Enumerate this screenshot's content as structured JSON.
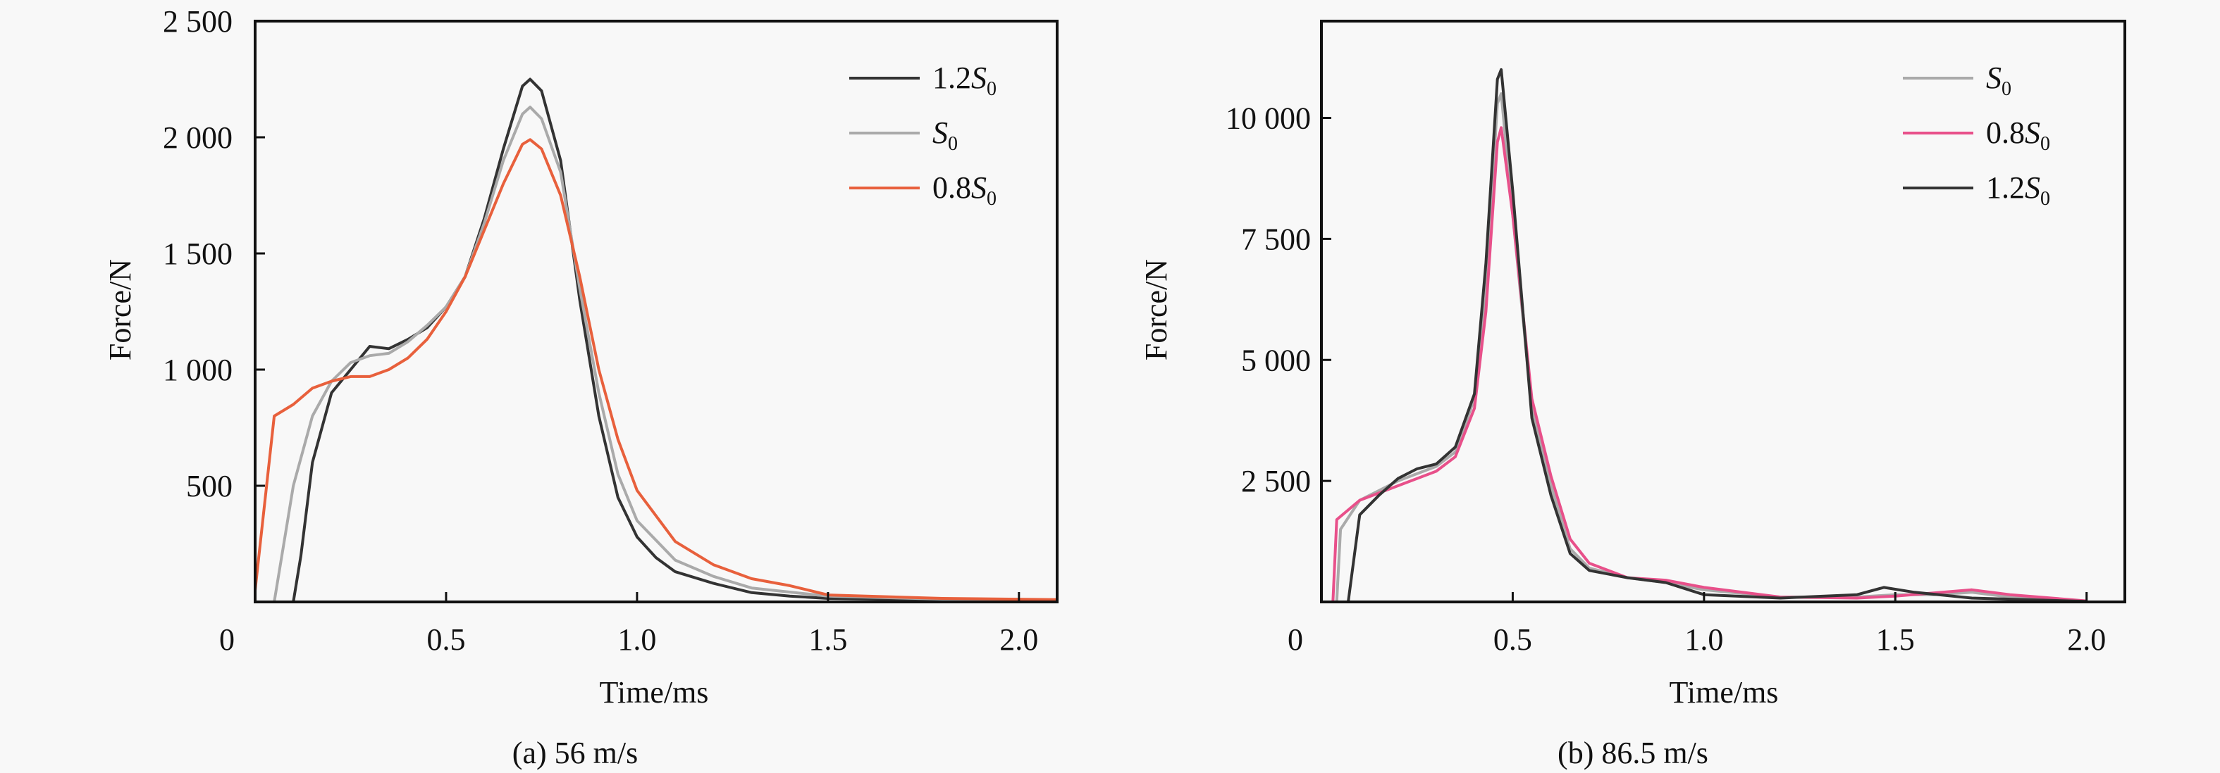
{
  "chart_data": [
    {
      "type": "line",
      "caption": "(a) 56 m/s",
      "xlabel": "Time/ms",
      "ylabel": "Force/N",
      "xlim": [
        0,
        2.1
      ],
      "ylim": [
        0,
        2500
      ],
      "xticks": [
        "0",
        "0.5",
        "1.0",
        "1.5",
        "2.0"
      ],
      "xtick_values": [
        0,
        0.5,
        1.0,
        1.5,
        2.0
      ],
      "yticks": [
        "500",
        "1 000",
        "1 500",
        "2 000",
        "2 500"
      ],
      "ytick_values": [
        500,
        1000,
        1500,
        2000,
        2500
      ],
      "grid": false,
      "legend_position": "top-right",
      "series": [
        {
          "name": "1.2S0",
          "label": {
            "prefix": "1.2",
            "var": "S",
            "sub": "0"
          },
          "color": "#333333",
          "x": [
            0.1,
            0.12,
            0.15,
            0.2,
            0.25,
            0.3,
            0.35,
            0.4,
            0.45,
            0.5,
            0.55,
            0.6,
            0.65,
            0.7,
            0.72,
            0.75,
            0.8,
            0.85,
            0.9,
            0.95,
            1.0,
            1.05,
            1.1,
            1.2,
            1.3,
            1.4,
            1.5,
            1.8,
            2.1
          ],
          "y": [
            0,
            200,
            600,
            900,
            1000,
            1100,
            1090,
            1130,
            1180,
            1270,
            1400,
            1650,
            1950,
            2220,
            2250,
            2200,
            1900,
            1300,
            800,
            450,
            280,
            190,
            130,
            80,
            40,
            25,
            15,
            8,
            3
          ]
        },
        {
          "name": "S0",
          "label": {
            "prefix": "",
            "var": "S",
            "sub": "0"
          },
          "color": "#aaaaaa",
          "x": [
            0.05,
            0.08,
            0.1,
            0.15,
            0.2,
            0.25,
            0.3,
            0.35,
            0.4,
            0.45,
            0.5,
            0.55,
            0.6,
            0.65,
            0.7,
            0.72,
            0.75,
            0.8,
            0.85,
            0.9,
            0.95,
            1.0,
            1.1,
            1.2,
            1.3,
            1.5,
            1.8,
            2.1
          ],
          "y": [
            0,
            300,
            500,
            800,
            950,
            1030,
            1060,
            1070,
            1120,
            1190,
            1270,
            1400,
            1630,
            1900,
            2100,
            2130,
            2080,
            1850,
            1350,
            900,
            550,
            350,
            180,
            110,
            60,
            25,
            12,
            5
          ]
        },
        {
          "name": "0.8S0",
          "label": {
            "prefix": "0.8",
            "var": "S",
            "sub": "0"
          },
          "color": "#e8603c",
          "x": [
            0.0,
            0.05,
            0.1,
            0.15,
            0.2,
            0.25,
            0.3,
            0.35,
            0.4,
            0.45,
            0.5,
            0.55,
            0.6,
            0.65,
            0.7,
            0.72,
            0.75,
            0.8,
            0.85,
            0.9,
            0.95,
            1.0,
            1.1,
            1.2,
            1.3,
            1.4,
            1.5,
            1.8,
            2.1
          ],
          "y": [
            50,
            800,
            850,
            920,
            950,
            970,
            970,
            1000,
            1050,
            1130,
            1250,
            1400,
            1600,
            1800,
            1970,
            1990,
            1950,
            1750,
            1400,
            1000,
            700,
            480,
            260,
            160,
            100,
            70,
            30,
            15,
            10
          ]
        }
      ]
    },
    {
      "type": "line",
      "caption": "(b) 86.5 m/s",
      "xlabel": "Time/ms",
      "ylabel": "Force/N",
      "xlim": [
        0,
        2.1
      ],
      "ylim": [
        0,
        12000
      ],
      "xticks": [
        "0",
        "0.5",
        "1.0",
        "1.5",
        "2.0"
      ],
      "xtick_values": [
        0,
        0.5,
        1.0,
        1.5,
        2.0
      ],
      "yticks": [
        "2 500",
        "5 000",
        "7 500",
        "10 000"
      ],
      "ytick_values": [
        2500,
        5000,
        7500,
        10000
      ],
      "grid": false,
      "legend_position": "top-right",
      "series": [
        {
          "name": "S0",
          "label": {
            "prefix": "",
            "var": "S",
            "sub": "0"
          },
          "color": "#aaaaaa",
          "x": [
            0.04,
            0.05,
            0.1,
            0.2,
            0.3,
            0.35,
            0.4,
            0.43,
            0.46,
            0.47,
            0.5,
            0.55,
            0.6,
            0.65,
            0.7,
            0.8,
            0.9,
            1.0,
            1.2,
            1.4,
            1.5,
            1.6,
            1.7,
            1.8,
            2.0
          ],
          "y": [
            0,
            1500,
            2100,
            2500,
            2800,
            3100,
            4200,
            6500,
            10300,
            10500,
            8000,
            4000,
            2400,
            1100,
            700,
            500,
            400,
            250,
            100,
            100,
            150,
            150,
            200,
            100,
            20
          ]
        },
        {
          "name": "0.8S0",
          "label": {
            "prefix": "0.8",
            "var": "S",
            "sub": "0"
          },
          "color": "#e8508a",
          "x": [
            0.03,
            0.04,
            0.1,
            0.2,
            0.3,
            0.35,
            0.4,
            0.43,
            0.46,
            0.47,
            0.5,
            0.55,
            0.6,
            0.65,
            0.7,
            0.8,
            0.9,
            1.0,
            1.2,
            1.4,
            1.5,
            1.7,
            1.8,
            2.0
          ],
          "y": [
            0,
            1700,
            2100,
            2400,
            2700,
            3000,
            4000,
            6000,
            9500,
            9800,
            8000,
            4200,
            2600,
            1300,
            800,
            500,
            450,
            300,
            100,
            80,
            120,
            250,
            150,
            20
          ]
        },
        {
          "name": "1.2S0",
          "label": {
            "prefix": "1.2",
            "var": "S",
            "sub": "0"
          },
          "color": "#333333",
          "x": [
            0.07,
            0.1,
            0.15,
            0.2,
            0.25,
            0.3,
            0.35,
            0.4,
            0.43,
            0.46,
            0.47,
            0.5,
            0.55,
            0.6,
            0.65,
            0.7,
            0.8,
            0.9,
            1.0,
            1.2,
            1.4,
            1.47,
            1.55,
            1.7,
            2.0
          ],
          "y": [
            0,
            1800,
            2200,
            2550,
            2750,
            2850,
            3200,
            4300,
            7000,
            10800,
            11000,
            8500,
            3800,
            2200,
            1000,
            650,
            500,
            400,
            150,
            80,
            150,
            300,
            200,
            80,
            10
          ]
        }
      ]
    }
  ]
}
